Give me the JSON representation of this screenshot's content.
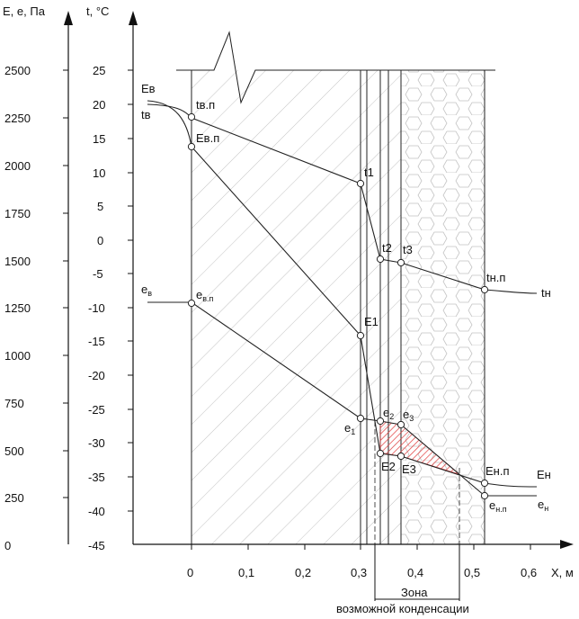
{
  "axes": {
    "pressure_title": "E, e, Па",
    "temp_title": "t, °C",
    "x_title": "X, м",
    "pressure_ticks": [
      "2500",
      "2250",
      "2000",
      "1750",
      "1500",
      "1250",
      "1000",
      "750",
      "500",
      "250",
      "0"
    ],
    "temp_ticks": [
      "25",
      "20",
      "15",
      "10",
      "5",
      "0",
      "-5",
      "-10",
      "-15",
      "-20",
      "-25",
      "-30",
      "-35",
      "-40",
      "-45"
    ],
    "x_ticks": [
      "0",
      "0,1",
      "0,2",
      "0,3",
      "0,4",
      "0,5",
      "0,6"
    ]
  },
  "labels": {
    "Ev": "Eв",
    "tv": "tв",
    "tvp": "tв.п",
    "Evp": "Eв.п",
    "t1": "t1",
    "t2": "t2",
    "t3": "t3",
    "tnp": "tн.п",
    "tn": "tн",
    "ev_base": "e",
    "ev_sub": "в",
    "evp_base": "e",
    "evp_sub": "в.п",
    "E1": "E1",
    "e1_base": "e",
    "e1_sub": "1",
    "e2_base": "e",
    "e2_sub": "2",
    "e3_base": "e",
    "e3_sub": "3",
    "E2": "E2",
    "E3": "E3",
    "Enp": "Eн.п",
    "En": "Eн",
    "enp_base": "e",
    "enp_sub": "н.п",
    "en_base": "e",
    "en_sub": "н"
  },
  "zone": {
    "line1": "Зона",
    "line2": "возможной конденсации"
  },
  "colors": {
    "line": "#222222",
    "hatch": "#9a9a9a",
    "condensation": "#e23b3b"
  }
}
